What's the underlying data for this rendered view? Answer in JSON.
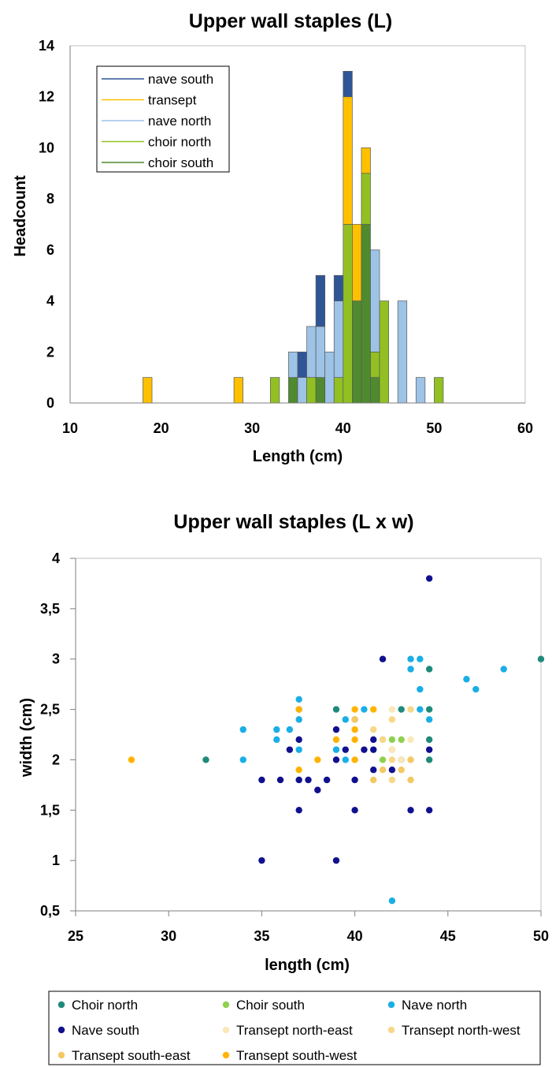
{
  "chart_data": [
    {
      "type": "bar",
      "stacked": true,
      "title": "Upper wall staples (L)",
      "xlabel": "Length (cm)",
      "ylabel": "Headcount",
      "xlim": [
        10,
        60
      ],
      "ylim": [
        0,
        14
      ],
      "x_ticks": [
        "10",
        "20",
        "30",
        "40",
        "50",
        "60"
      ],
      "y_ticks": [
        "0",
        "2",
        "4",
        "6",
        "8",
        "10",
        "12",
        "14"
      ],
      "grid": false,
      "legend_position": "top-left",
      "legend": [
        "nave south",
        "transept",
        "nave north",
        "choir north",
        "choir south"
      ],
      "bars": [
        {
          "x": 18.5,
          "stack": [
            {
              "series": "transept",
              "value": 1
            }
          ]
        },
        {
          "x": 28.5,
          "stack": [
            {
              "series": "transept",
              "value": 1
            }
          ]
        },
        {
          "x": 32.5,
          "stack": [
            {
              "series": "choir north",
              "value": 1
            }
          ]
        },
        {
          "x": 34.5,
          "stack": [
            {
              "series": "choir south",
              "value": 1
            },
            {
              "series": "nave north",
              "value": 1
            }
          ]
        },
        {
          "x": 35.5,
          "stack": [
            {
              "series": "nave north",
              "value": 1
            },
            {
              "series": "nave south",
              "value": 1
            }
          ]
        },
        {
          "x": 36.5,
          "stack": [
            {
              "series": "choir north",
              "value": 1
            },
            {
              "series": "nave north",
              "value": 2
            }
          ]
        },
        {
          "x": 37.5,
          "stack": [
            {
              "series": "choir south",
              "value": 1
            },
            {
              "series": "nave north",
              "value": 2
            },
            {
              "series": "nave south",
              "value": 2
            }
          ]
        },
        {
          "x": 38.5,
          "stack": [
            {
              "series": "nave north",
              "value": 2
            }
          ]
        },
        {
          "x": 39.5,
          "stack": [
            {
              "series": "choir north",
              "value": 1
            },
            {
              "series": "nave north",
              "value": 3
            },
            {
              "series": "nave south",
              "value": 1
            }
          ]
        },
        {
          "x": 40.5,
          "stack": [
            {
              "series": "choir north",
              "value": 7
            },
            {
              "series": "transept",
              "value": 5
            },
            {
              "series": "nave south",
              "value": 1
            }
          ]
        },
        {
          "x": 41.5,
          "stack": [
            {
              "series": "choir south",
              "value": 4
            },
            {
              "series": "transept",
              "value": 3
            }
          ]
        },
        {
          "x": 42.5,
          "stack": [
            {
              "series": "choir south",
              "value": 7
            },
            {
              "series": "choir north",
              "value": 2
            },
            {
              "series": "transept",
              "value": 1
            }
          ]
        },
        {
          "x": 43.5,
          "stack": [
            {
              "series": "choir south",
              "value": 1
            },
            {
              "series": "choir north",
              "value": 1
            },
            {
              "series": "nave north",
              "value": 4
            }
          ]
        },
        {
          "x": 44.5,
          "stack": [
            {
              "series": "choir north",
              "value": 4
            }
          ]
        },
        {
          "x": 46.5,
          "stack": [
            {
              "series": "nave north",
              "value": 4
            }
          ]
        },
        {
          "x": 48.5,
          "stack": [
            {
              "series": "nave north",
              "value": 1
            }
          ]
        },
        {
          "x": 50.5,
          "stack": [
            {
              "series": "choir north",
              "value": 1
            }
          ]
        }
      ],
      "colors": {
        "nave south": "#2f5597",
        "transept": "#ffc000",
        "nave north": "#9dc3e6",
        "choir north": "#92c023",
        "choir south": "#4f8a2f"
      }
    },
    {
      "type": "scatter",
      "title": "Upper wall staples (L x w)",
      "xlabel": "length (cm)",
      "ylabel": "width (cm)",
      "xlim": [
        25,
        50
      ],
      "ylim": [
        0.5,
        4
      ],
      "x_ticks": [
        "25",
        "30",
        "35",
        "40",
        "45",
        "50"
      ],
      "y_ticks": [
        "0,5",
        "1",
        "1,5",
        "2",
        "2,5",
        "3",
        "3,5",
        "4"
      ],
      "grid": false,
      "legend_position": "bottom",
      "series": [
        {
          "name": "Choir north",
          "color": "#1f8a7a",
          "points": [
            [
              32,
              2
            ],
            [
              39,
              2.5
            ],
            [
              42.5,
              2.5
            ],
            [
              44,
              2.5
            ],
            [
              44,
              2.9
            ],
            [
              44,
              2.2
            ],
            [
              44,
              2
            ],
            [
              50,
              3
            ],
            [
              42.5,
              2
            ]
          ]
        },
        {
          "name": "Choir south",
          "color": "#8fd14f",
          "points": [
            [
              41.5,
              2.2
            ],
            [
              42,
              2.2
            ],
            [
              42.5,
              2.2
            ],
            [
              42,
              2.1
            ],
            [
              41.5,
              2
            ]
          ]
        },
        {
          "name": "Nave north",
          "color": "#1aaee6",
          "points": [
            [
              34,
              2.3
            ],
            [
              34,
              2
            ],
            [
              35.8,
              2.3
            ],
            [
              35.8,
              2.2
            ],
            [
              36.5,
              2.3
            ],
            [
              37,
              2.6
            ],
            [
              37,
              2.5
            ],
            [
              37,
              2.4
            ],
            [
              37,
              2.1
            ],
            [
              39,
              2.1
            ],
            [
              39.5,
              2.4
            ],
            [
              39.5,
              2
            ],
            [
              40,
              2.4
            ],
            [
              40.5,
              2.5
            ],
            [
              43,
              3
            ],
            [
              43.5,
              3
            ],
            [
              43,
              2.9
            ],
            [
              43.5,
              2.7
            ],
            [
              43.5,
              2.5
            ],
            [
              44,
              2.4
            ],
            [
              46,
              2.8
            ],
            [
              46.5,
              2.7
            ],
            [
              48,
              2.9
            ],
            [
              42,
              0.6
            ]
          ]
        },
        {
          "name": "Nave south",
          "color": "#10108f",
          "points": [
            [
              35,
              1.8
            ],
            [
              36,
              1.8
            ],
            [
              36.5,
              2.1
            ],
            [
              37,
              2.2
            ],
            [
              37,
              1.8
            ],
            [
              37.5,
              1.8
            ],
            [
              38,
              1.7
            ],
            [
              38.5,
              1.8
            ],
            [
              39,
              2.3
            ],
            [
              39,
              2
            ],
            [
              39.5,
              2.1
            ],
            [
              40,
              1.8
            ],
            [
              40.5,
              2.1
            ],
            [
              41,
              2.2
            ],
            [
              41,
              2.1
            ],
            [
              41,
              1.9
            ],
            [
              41.5,
              3
            ],
            [
              42,
              1.9
            ],
            [
              43,
              1.5
            ],
            [
              44,
              3.8
            ],
            [
              44,
              2.1
            ],
            [
              44,
              1.5
            ],
            [
              37,
              1.5
            ],
            [
              40,
              1.5
            ],
            [
              35,
              1
            ],
            [
              39,
              1
            ]
          ]
        },
        {
          "name": "Transept north-east",
          "color": "#fbe7b8",
          "points": [
            [
              42,
              2.5
            ],
            [
              42,
              2.1
            ],
            [
              42.5,
              2
            ],
            [
              43,
              2.2
            ]
          ]
        },
        {
          "name": "Transept north-west",
          "color": "#f8d887",
          "points": [
            [
              41,
              2.3
            ],
            [
              41.5,
              2.2
            ],
            [
              42,
              2.4
            ],
            [
              42,
              2
            ],
            [
              43,
              2.5
            ],
            [
              42,
              1.8
            ]
          ]
        },
        {
          "name": "Transept south-east",
          "color": "#f4c862",
          "points": [
            [
              40,
              2.4
            ],
            [
              41,
              1.8
            ],
            [
              41.5,
              1.9
            ],
            [
              42.5,
              1.9
            ],
            [
              43,
              1.8
            ],
            [
              43,
              2
            ]
          ]
        },
        {
          "name": "Transept south-west",
          "color": "#ffb300",
          "points": [
            [
              28,
              2
            ],
            [
              37,
              2.5
            ],
            [
              37,
              1.9
            ],
            [
              38,
              2
            ],
            [
              39,
              2.2
            ],
            [
              40,
              2.5
            ],
            [
              40,
              2.3
            ],
            [
              40,
              2.2
            ],
            [
              40,
              2
            ],
            [
              41,
              2.5
            ]
          ]
        }
      ]
    }
  ]
}
